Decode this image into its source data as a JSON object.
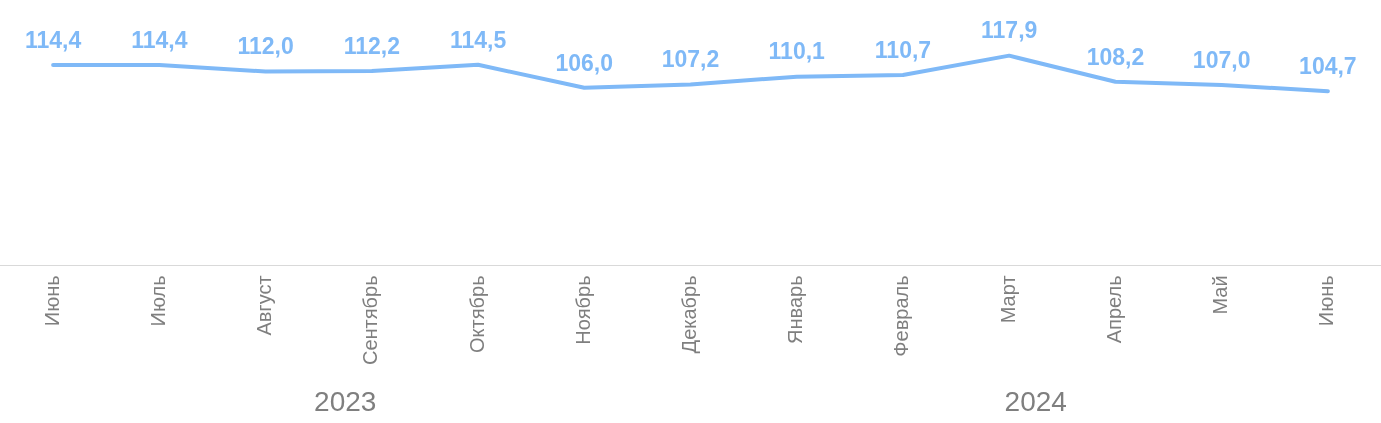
{
  "chart_data": {
    "type": "line",
    "categories": [
      "Июнь",
      "Июль",
      "Август",
      "Сентябрь",
      "Октябрь",
      "Ноябрь",
      "Декабрь",
      "Январь",
      "Февраль",
      "Март",
      "Апрель",
      "Май",
      "Июнь"
    ],
    "series": [
      {
        "color": "#7fb9f7",
        "values": [
          114.4,
          114.4,
          112.0,
          112.2,
          114.5,
          106.0,
          107.2,
          110.1,
          110.7,
          117.9,
          108.2,
          107.0,
          104.7
        ],
        "value_labels": [
          "114,4",
          "114,4",
          "112,0",
          "112,2",
          "114,5",
          "106,0",
          "107,2",
          "110,1",
          "110,7",
          "117,9",
          "108,2",
          "107,0",
          "104,7"
        ]
      }
    ],
    "tick_labels": "x",
    "grid": false,
    "legend": false,
    "marker": "none",
    "line_style": "solid",
    "annotations": [
      "2023",
      "2024"
    ]
  }
}
